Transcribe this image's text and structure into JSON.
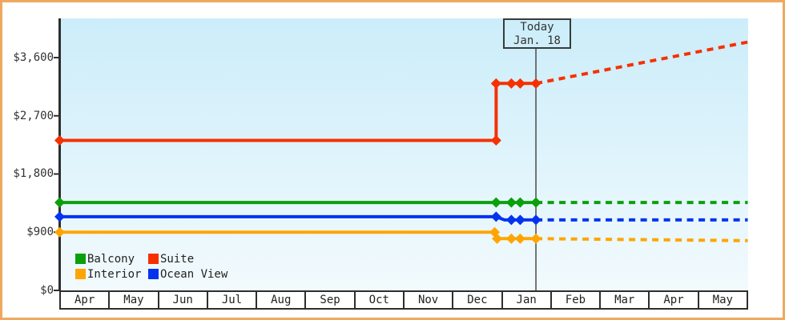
{
  "chart_data": {
    "type": "line",
    "title": "",
    "x_axis": {
      "tick_labels": [
        "Apr",
        "May",
        "Jun",
        "Jul",
        "Aug",
        "Sep",
        "Oct",
        "Nov",
        "Dec",
        "Jan",
        "Feb",
        "Mar",
        "Apr",
        "May"
      ]
    },
    "y_axis": {
      "tick_labels": [
        "$3,600",
        "$2,700",
        "$1,800",
        "$900",
        "$0"
      ],
      "tick_values": [
        3600,
        2700,
        1800,
        900,
        0
      ],
      "range": [
        0,
        4330
      ]
    },
    "today": {
      "line1": "Today",
      "line2": "Jan. 18",
      "x_month": 9.69
    },
    "series": [
      {
        "name": "Suite",
        "color": "#f63000",
        "solid": [
          [
            0,
            2320
          ],
          [
            8.88,
            2320
          ],
          [
            8.88,
            3200
          ],
          [
            9.69,
            3200
          ]
        ],
        "markers": [
          [
            0,
            2320
          ],
          [
            8.88,
            2320
          ],
          [
            8.88,
            3200
          ],
          [
            9.19,
            3200
          ],
          [
            9.37,
            3200
          ],
          [
            9.69,
            3200
          ]
        ],
        "dotted": [
          [
            9.69,
            3200
          ],
          [
            14,
            3840
          ]
        ]
      },
      {
        "name": "Balcony",
        "color": "#0aa00a",
        "solid": [
          [
            0,
            1360
          ],
          [
            9.69,
            1360
          ]
        ],
        "markers": [
          [
            0,
            1360
          ],
          [
            8.88,
            1360
          ],
          [
            9.19,
            1360
          ],
          [
            9.37,
            1360
          ],
          [
            9.69,
            1360
          ]
        ],
        "dotted": [
          [
            9.69,
            1360
          ],
          [
            14,
            1360
          ]
        ]
      },
      {
        "name": "Ocean View",
        "color": "#0433ef",
        "solid": [
          [
            0,
            1140
          ],
          [
            8.88,
            1140
          ],
          [
            9.05,
            1090
          ],
          [
            9.69,
            1090
          ]
        ],
        "markers": [
          [
            0,
            1140
          ],
          [
            8.88,
            1140
          ],
          [
            9.19,
            1090
          ],
          [
            9.37,
            1090
          ],
          [
            9.69,
            1090
          ]
        ],
        "dotted": [
          [
            9.69,
            1090
          ],
          [
            14,
            1090
          ]
        ]
      },
      {
        "name": "Interior",
        "color": "#ffa502",
        "solid": [
          [
            0,
            900
          ],
          [
            8.85,
            900
          ],
          [
            8.9,
            800
          ],
          [
            9.69,
            800
          ]
        ],
        "markers": [
          [
            0,
            900
          ],
          [
            8.85,
            900
          ],
          [
            8.9,
            800
          ],
          [
            9.19,
            800
          ],
          [
            9.37,
            800
          ],
          [
            9.69,
            800
          ]
        ],
        "dotted": [
          [
            9.69,
            800
          ],
          [
            14,
            770
          ]
        ]
      }
    ],
    "legend": {
      "position": "bottom-left",
      "entries": [
        {
          "label": "Balcony",
          "color": "#0aa00a"
        },
        {
          "label": "Suite",
          "color": "#f63000"
        },
        {
          "label": "Interior",
          "color": "#ffa502"
        },
        {
          "label": "Ocean View",
          "color": "#0433ef"
        }
      ]
    }
  },
  "colors": {
    "frame_border": "#efa95f",
    "axis": "#2e2e2e",
    "text": "#333333",
    "today_line": "#4a4a4a",
    "plot_top": "#cbedfa",
    "plot_bottom": "#f2fafd"
  }
}
